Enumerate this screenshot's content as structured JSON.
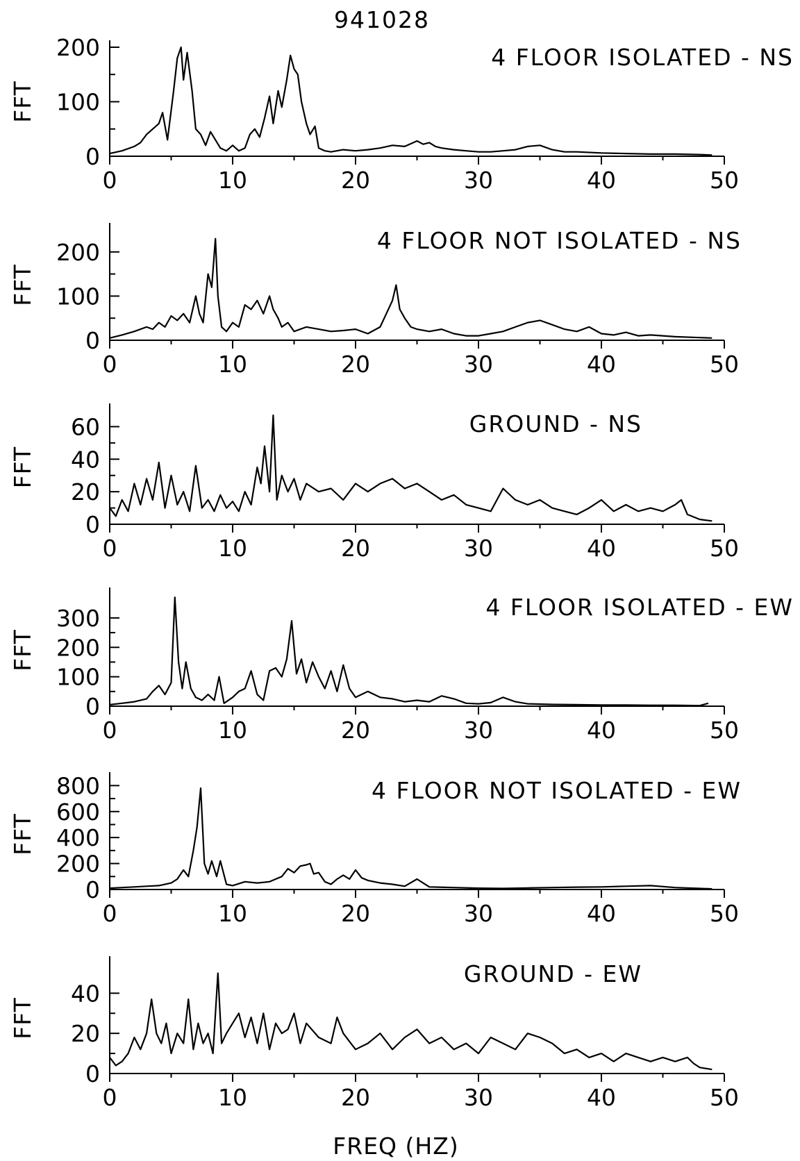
{
  "page_title": "941028",
  "x_axis_label": "FREQ (HZ)",
  "line_color": "#000000",
  "chart_data": [
    {
      "type": "line",
      "title": "4 FLOOR ISOLATED - NS",
      "ylabel": "FFT",
      "xlim": [
        0,
        50
      ],
      "ylim": [
        0,
        200
      ],
      "xticks": [
        0,
        10,
        20,
        30,
        40,
        50
      ],
      "yticks": [
        0,
        100,
        200
      ],
      "series": [
        {
          "x": [
            0,
            1,
            2,
            2.5,
            3,
            3.5,
            4,
            4.3,
            4.7,
            5.2,
            5.5,
            5.8,
            6.0,
            6.3,
            6.7,
            7.0,
            7.4,
            7.8,
            8.2,
            8.6,
            9.0,
            9.5,
            10,
            10.5,
            11,
            11.4,
            11.8,
            12.2,
            12.6,
            13.0,
            13.3,
            13.7,
            14.0,
            14.4,
            14.7,
            15.0,
            15.3,
            15.6,
            16.0,
            16.3,
            16.7,
            17.0,
            17.5,
            18,
            19,
            20,
            21,
            22,
            23,
            24,
            25,
            25.5,
            26,
            26.5,
            27,
            28,
            29,
            30,
            31,
            32,
            33,
            34,
            35,
            36,
            37,
            38,
            40,
            42,
            44,
            46,
            48,
            49
          ],
          "y": [
            5,
            10,
            18,
            25,
            40,
            50,
            60,
            80,
            30,
            120,
            180,
            200,
            140,
            190,
            120,
            50,
            40,
            20,
            45,
            30,
            15,
            10,
            20,
            10,
            15,
            40,
            50,
            35,
            70,
            110,
            60,
            120,
            90,
            140,
            185,
            160,
            150,
            100,
            60,
            40,
            55,
            15,
            10,
            8,
            12,
            10,
            12,
            15,
            20,
            18,
            28,
            22,
            25,
            18,
            15,
            12,
            10,
            8,
            8,
            10,
            12,
            18,
            20,
            12,
            8,
            8,
            6,
            5,
            4,
            4,
            3,
            2
          ]
        }
      ]
    },
    {
      "type": "line",
      "title": "4 FLOOR NOT ISOLATED - NS",
      "ylabel": "FFT",
      "xlim": [
        0,
        50
      ],
      "ylim": [
        0,
        250
      ],
      "xticks": [
        0,
        10,
        20,
        30,
        40,
        50
      ],
      "yticks": [
        0,
        100,
        200
      ],
      "series": [
        {
          "x": [
            0,
            1,
            2,
            3,
            3.5,
            4,
            4.5,
            5,
            5.5,
            6,
            6.5,
            7.0,
            7.3,
            7.6,
            8.0,
            8.3,
            8.6,
            8.8,
            9.1,
            9.5,
            10,
            10.5,
            11,
            11.5,
            12,
            12.5,
            13,
            13.3,
            13.7,
            14,
            14.5,
            15,
            16,
            17,
            18,
            19,
            20,
            21,
            22,
            22.5,
            23,
            23.3,
            23.6,
            24,
            24.5,
            25,
            26,
            27,
            28,
            29,
            30,
            31,
            32,
            33,
            34,
            35,
            36,
            37,
            38,
            39,
            40,
            41,
            42,
            43,
            44,
            46,
            48,
            49
          ],
          "y": [
            5,
            12,
            20,
            30,
            25,
            40,
            30,
            55,
            45,
            60,
            40,
            100,
            60,
            40,
            150,
            120,
            230,
            100,
            30,
            20,
            40,
            30,
            80,
            70,
            90,
            60,
            100,
            70,
            50,
            30,
            40,
            20,
            30,
            25,
            20,
            22,
            25,
            15,
            30,
            60,
            90,
            125,
            70,
            50,
            30,
            25,
            20,
            25,
            15,
            10,
            10,
            15,
            20,
            30,
            40,
            45,
            35,
            25,
            20,
            30,
            15,
            12,
            18,
            10,
            12,
            8,
            6,
            5
          ]
        }
      ]
    },
    {
      "type": "line",
      "title": "GROUND - NS",
      "ylabel": "FFT",
      "xlim": [
        0,
        50
      ],
      "ylim": [
        0,
        70
      ],
      "xticks": [
        0,
        10,
        20,
        30,
        40,
        50
      ],
      "yticks": [
        0,
        20,
        40,
        60
      ],
      "series": [
        {
          "x": [
            0,
            0.5,
            1,
            1.5,
            2,
            2.5,
            3,
            3.5,
            4,
            4.5,
            5,
            5.5,
            6,
            6.5,
            7,
            7.5,
            8,
            8.5,
            9,
            9.5,
            10,
            10.5,
            11,
            11.5,
            12,
            12.3,
            12.6,
            13,
            13.3,
            13.6,
            14,
            14.5,
            15,
            15.5,
            16,
            17,
            18,
            19,
            20,
            21,
            22,
            23,
            24,
            25,
            26,
            27,
            28,
            29,
            30,
            31,
            32,
            33,
            34,
            35,
            36,
            37,
            38,
            39,
            40,
            41,
            42,
            43,
            44,
            45,
            46,
            46.5,
            47,
            48,
            49
          ],
          "y": [
            10,
            5,
            15,
            8,
            25,
            12,
            28,
            15,
            38,
            10,
            30,
            12,
            20,
            8,
            36,
            10,
            15,
            8,
            18,
            10,
            14,
            8,
            20,
            12,
            35,
            25,
            48,
            20,
            67,
            15,
            30,
            20,
            28,
            15,
            25,
            20,
            22,
            15,
            25,
            20,
            25,
            28,
            22,
            25,
            20,
            15,
            18,
            12,
            10,
            8,
            22,
            15,
            12,
            15,
            10,
            8,
            6,
            10,
            15,
            8,
            12,
            8,
            10,
            8,
            12,
            15,
            6,
            3,
            2
          ]
        }
      ]
    },
    {
      "type": "line",
      "title": "4 FLOOR ISOLATED - EW",
      "ylabel": "FFT",
      "xlim": [
        0,
        50
      ],
      "ylim": [
        0,
        380
      ],
      "xticks": [
        0,
        10,
        20,
        30,
        40,
        50
      ],
      "yticks": [
        0,
        100,
        200,
        300
      ],
      "series": [
        {
          "x": [
            0,
            1,
            2,
            3,
            3.5,
            4,
            4.5,
            5.0,
            5.3,
            5.6,
            5.9,
            6.2,
            6.6,
            7.0,
            7.5,
            8,
            8.5,
            8.9,
            9.3,
            10,
            10.5,
            11,
            11.5,
            12,
            12.5,
            13,
            13.5,
            14,
            14.4,
            14.8,
            15.2,
            15.6,
            16,
            16.5,
            17,
            17.5,
            18,
            18.5,
            19,
            19.5,
            20,
            21,
            22,
            23,
            24,
            25,
            26,
            27,
            28,
            29,
            30,
            31,
            32,
            33,
            34,
            36,
            38,
            40,
            42,
            44,
            46,
            48,
            48.7
          ],
          "y": [
            5,
            10,
            15,
            25,
            50,
            70,
            40,
            80,
            370,
            150,
            60,
            150,
            60,
            30,
            20,
            40,
            20,
            100,
            10,
            30,
            50,
            60,
            120,
            40,
            20,
            120,
            130,
            100,
            160,
            290,
            110,
            160,
            80,
            150,
            100,
            60,
            120,
            50,
            140,
            60,
            30,
            50,
            30,
            25,
            15,
            20,
            15,
            35,
            25,
            10,
            8,
            12,
            30,
            15,
            8,
            6,
            5,
            4,
            4,
            3,
            3,
            2,
            10
          ]
        }
      ]
    },
    {
      "type": "line",
      "title": "4 FLOOR NOT ISOLATED - EW",
      "ylabel": "FFT",
      "xlim": [
        0,
        50
      ],
      "ylim": [
        0,
        850
      ],
      "xticks": [
        0,
        10,
        20,
        30,
        40,
        50
      ],
      "yticks": [
        0,
        200,
        400,
        600,
        800
      ],
      "series": [
        {
          "x": [
            0,
            1,
            2,
            3,
            4,
            5,
            5.5,
            6.0,
            6.4,
            6.8,
            7.1,
            7.4,
            7.7,
            8.0,
            8.3,
            8.7,
            9.0,
            9.5,
            10,
            11,
            12,
            13,
            13.5,
            14,
            14.5,
            15,
            15.5,
            16,
            16.3,
            16.6,
            17,
            17.5,
            18,
            18.5,
            19,
            19.5,
            20,
            20.5,
            21,
            22,
            23,
            24,
            25,
            26,
            28,
            30,
            32,
            34,
            36,
            38,
            40,
            42,
            44,
            46,
            48,
            49
          ],
          "y": [
            10,
            15,
            20,
            25,
            30,
            50,
            80,
            150,
            100,
            300,
            480,
            780,
            200,
            120,
            220,
            100,
            220,
            40,
            30,
            60,
            50,
            60,
            80,
            100,
            160,
            130,
            180,
            190,
            200,
            120,
            130,
            60,
            40,
            80,
            110,
            80,
            150,
            90,
            70,
            50,
            40,
            25,
            80,
            20,
            15,
            10,
            8,
            12,
            15,
            18,
            20,
            25,
            30,
            15,
            8,
            5
          ]
        }
      ]
    },
    {
      "type": "line",
      "title": "GROUND - EW",
      "ylabel": "FFT",
      "xlim": [
        0,
        50
      ],
      "ylim": [
        0,
        55
      ],
      "xticks": [
        0,
        10,
        20,
        30,
        40,
        50
      ],
      "yticks": [
        0,
        20,
        40
      ],
      "series": [
        {
          "x": [
            0,
            0.5,
            1,
            1.5,
            2,
            2.5,
            3,
            3.4,
            3.8,
            4.2,
            4.6,
            5,
            5.5,
            6,
            6.4,
            6.8,
            7.2,
            7.6,
            8,
            8.4,
            8.8,
            9.1,
            9.5,
            10,
            10.5,
            11,
            11.5,
            12,
            12.5,
            13,
            13.5,
            14,
            14.5,
            15,
            15.5,
            16,
            17,
            18,
            18.5,
            19,
            20,
            21,
            22,
            23,
            24,
            25,
            26,
            27,
            28,
            29,
            30,
            31,
            32,
            33,
            34,
            35,
            36,
            37,
            38,
            39,
            40,
            41,
            42,
            43,
            44,
            45,
            46,
            47,
            47.5,
            48,
            49
          ],
          "y": [
            8,
            4,
            6,
            10,
            18,
            12,
            20,
            37,
            20,
            15,
            25,
            10,
            20,
            15,
            37,
            12,
            25,
            15,
            20,
            10,
            50,
            15,
            20,
            25,
            30,
            18,
            28,
            15,
            30,
            12,
            25,
            20,
            22,
            30,
            15,
            25,
            18,
            15,
            28,
            20,
            12,
            15,
            20,
            12,
            18,
            22,
            15,
            18,
            12,
            15,
            10,
            18,
            15,
            12,
            20,
            18,
            15,
            10,
            12,
            8,
            10,
            6,
            10,
            8,
            6,
            8,
            6,
            8,
            5,
            3,
            2
          ]
        }
      ]
    }
  ]
}
